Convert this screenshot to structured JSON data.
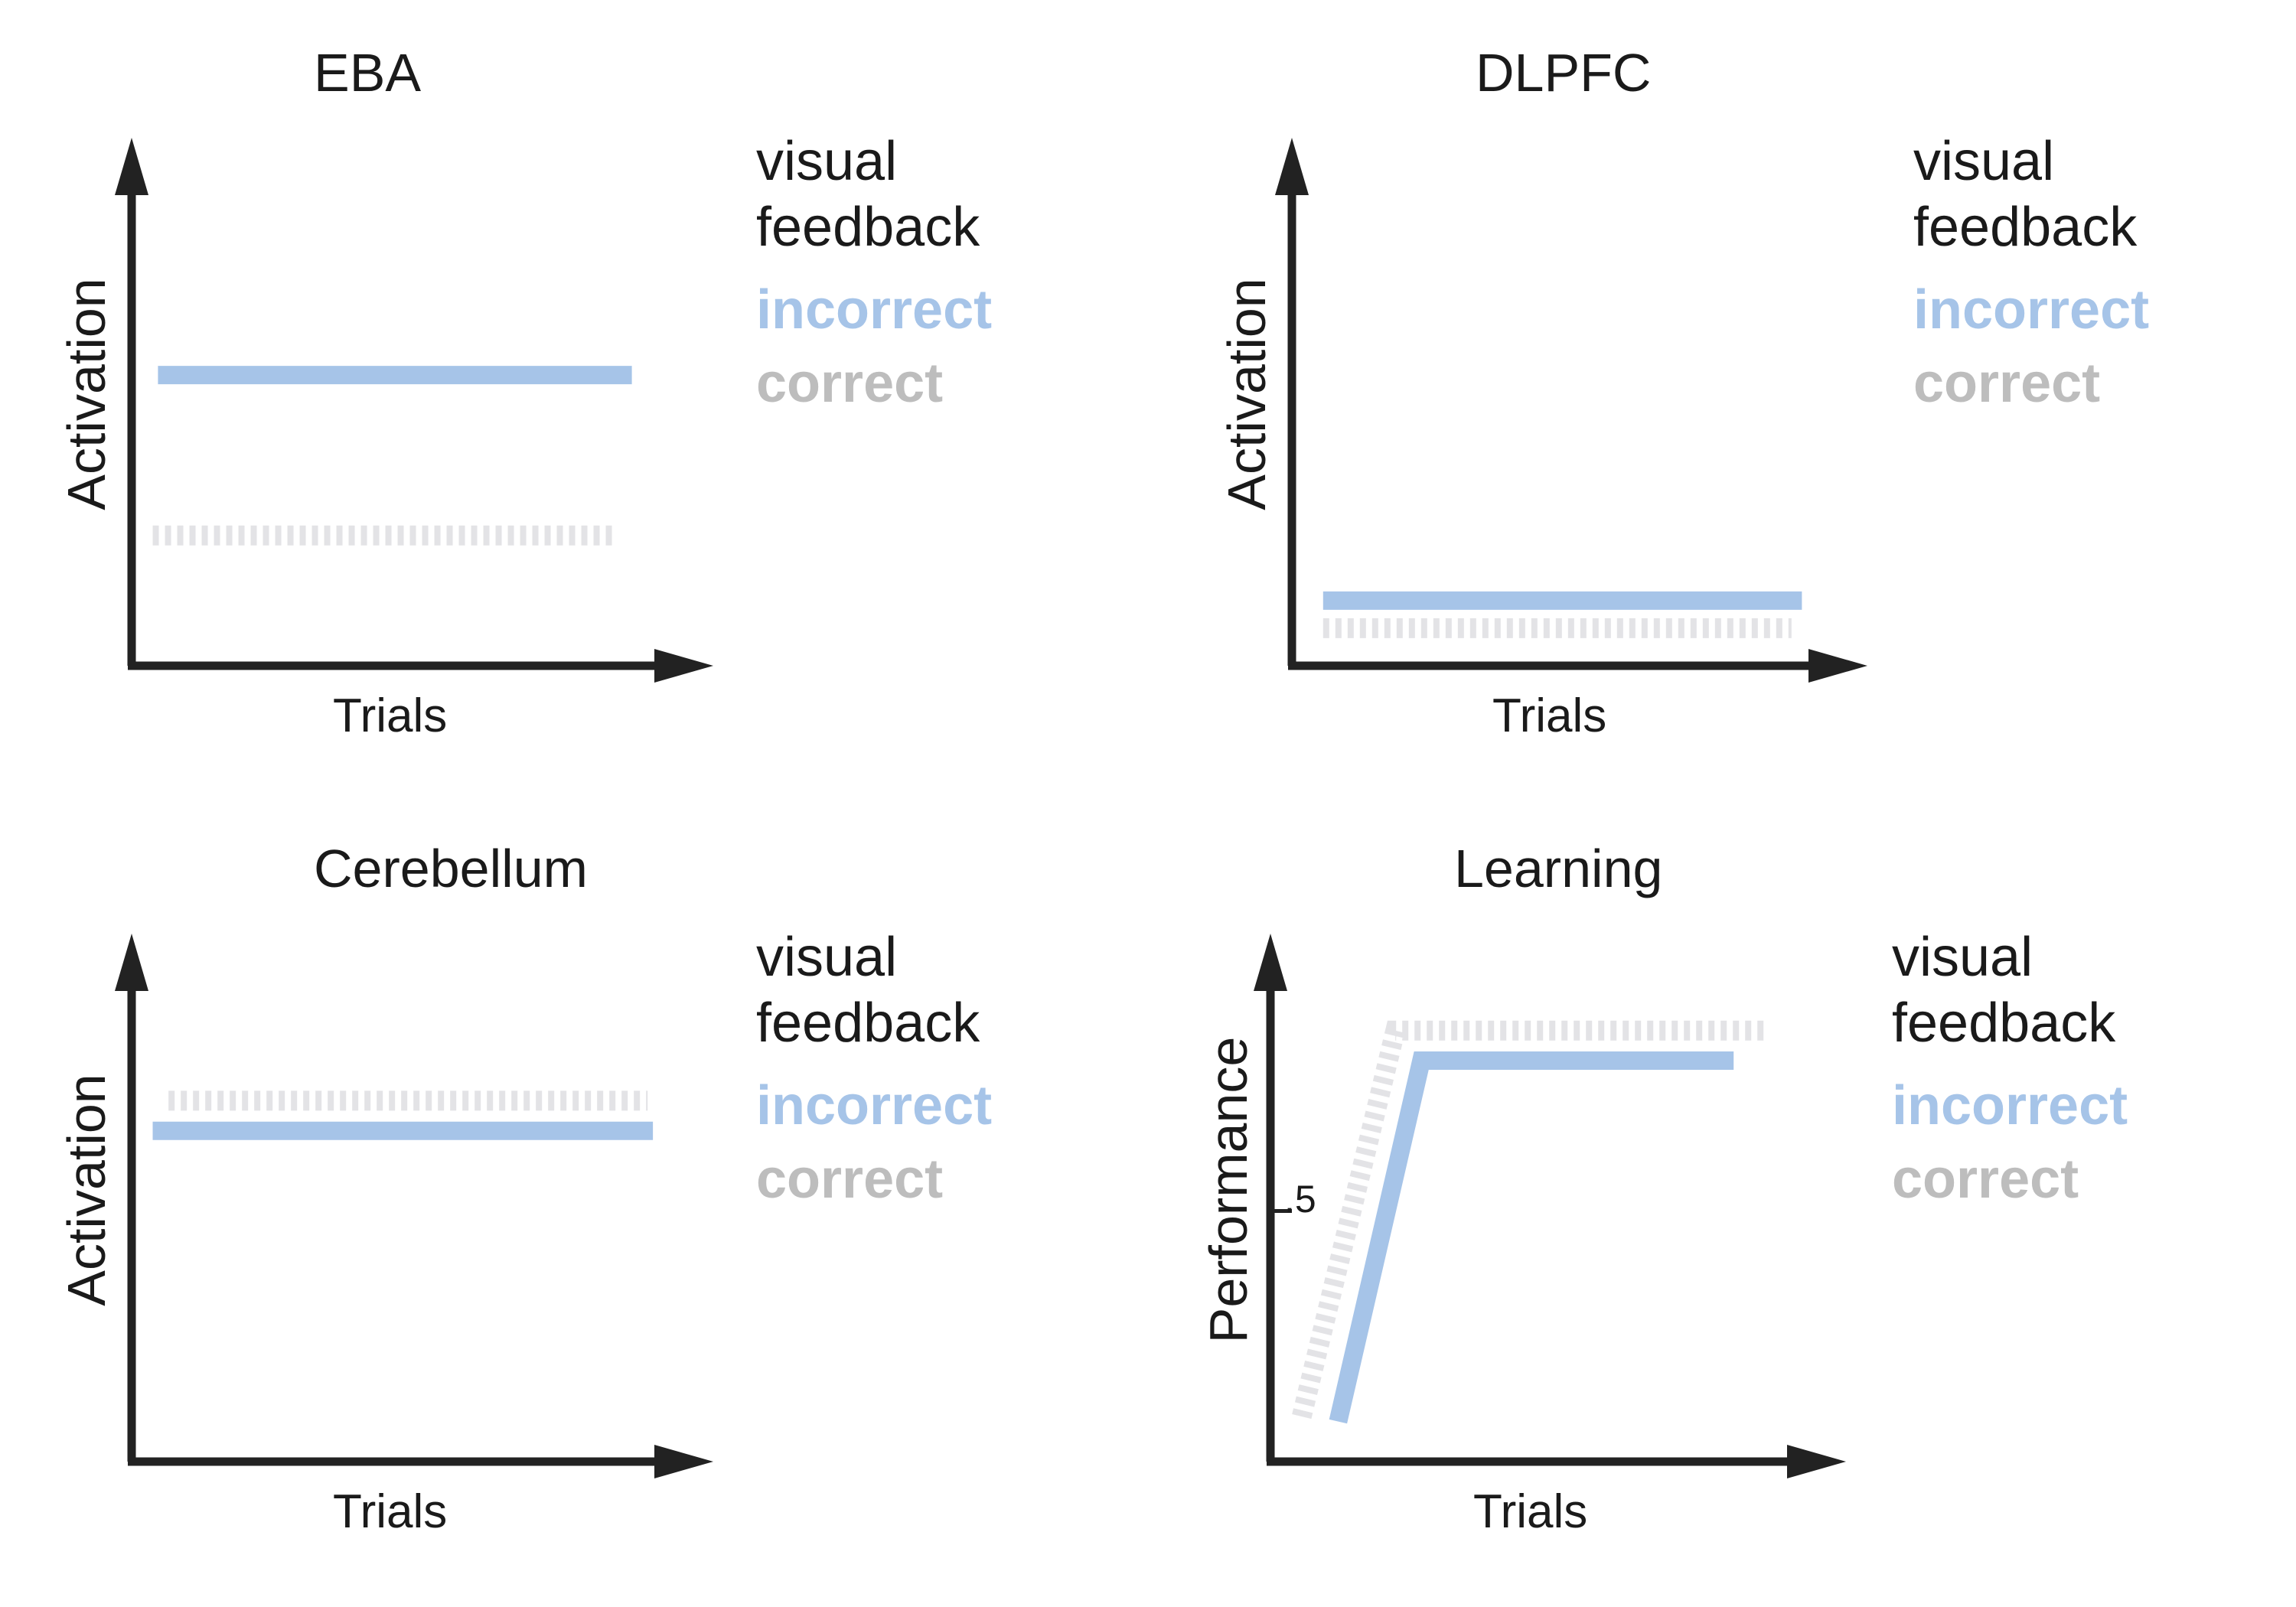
{
  "chart_data": [
    {
      "type": "line",
      "title": "EBA",
      "xlabel": "Trials",
      "ylabel": "Activation",
      "legend_title": "visual feedback",
      "colors": {
        "incorrect": "#a6c4e8",
        "correct": "#e3e3e6"
      },
      "ylim": [
        0,
        1
      ],
      "series": [
        {
          "name": "incorrect",
          "x": [
            0.05,
            0.95
          ],
          "y": [
            0.58,
            0.58
          ],
          "style": "solid"
        },
        {
          "name": "correct",
          "x": [
            0.04,
            0.92
          ],
          "y": [
            0.26,
            0.26
          ],
          "style": "dashed"
        }
      ]
    },
    {
      "type": "line",
      "title": "DLPFC",
      "xlabel": "Trials",
      "ylabel": "Activation",
      "legend_title": "visual feedback",
      "colors": {
        "incorrect": "#a6c4e8",
        "correct": "#e3e3e6"
      },
      "ylim": [
        0,
        1
      ],
      "series": [
        {
          "name": "incorrect",
          "x": [
            0.06,
            0.98
          ],
          "y": [
            0.13,
            0.13
          ],
          "style": "solid"
        },
        {
          "name": "correct",
          "x": [
            0.06,
            0.96
          ],
          "y": [
            0.075,
            0.075
          ],
          "style": "dashed"
        }
      ]
    },
    {
      "type": "line",
      "title": "Cerebellum",
      "xlabel": "Trials",
      "ylabel": "Activation",
      "legend_title": "visual feedback",
      "colors": {
        "incorrect": "#a6c4e8",
        "correct": "#e3e3e6"
      },
      "ylim": [
        0,
        1
      ],
      "series": [
        {
          "name": "incorrect",
          "x": [
            0.04,
            0.99
          ],
          "y": [
            0.66,
            0.66
          ],
          "style": "solid"
        },
        {
          "name": "correct",
          "x": [
            0.07,
            0.98
          ],
          "y": [
            0.72,
            0.72
          ],
          "style": "dashed"
        }
      ]
    },
    {
      "type": "line",
      "title": "Learning",
      "xlabel": "Trials",
      "ylabel": "Performance",
      "legend_title": "visual feedback",
      "colors": {
        "incorrect": "#a6c4e8",
        "correct": "#e3e3e6"
      },
      "ylim": [
        0,
        1
      ],
      "yticks": [
        {
          "value": 0.5,
          "label": ".5"
        }
      ],
      "series": [
        {
          "name": "incorrect",
          "x": [
            0.13,
            0.29,
            0.89
          ],
          "y": [
            0.08,
            0.8,
            0.8
          ],
          "style": "solid"
        },
        {
          "name": "correct",
          "x": [
            0.06,
            0.24,
            0.95
          ],
          "y": [
            0.09,
            0.86,
            0.86
          ],
          "style": "dashed"
        }
      ]
    }
  ]
}
